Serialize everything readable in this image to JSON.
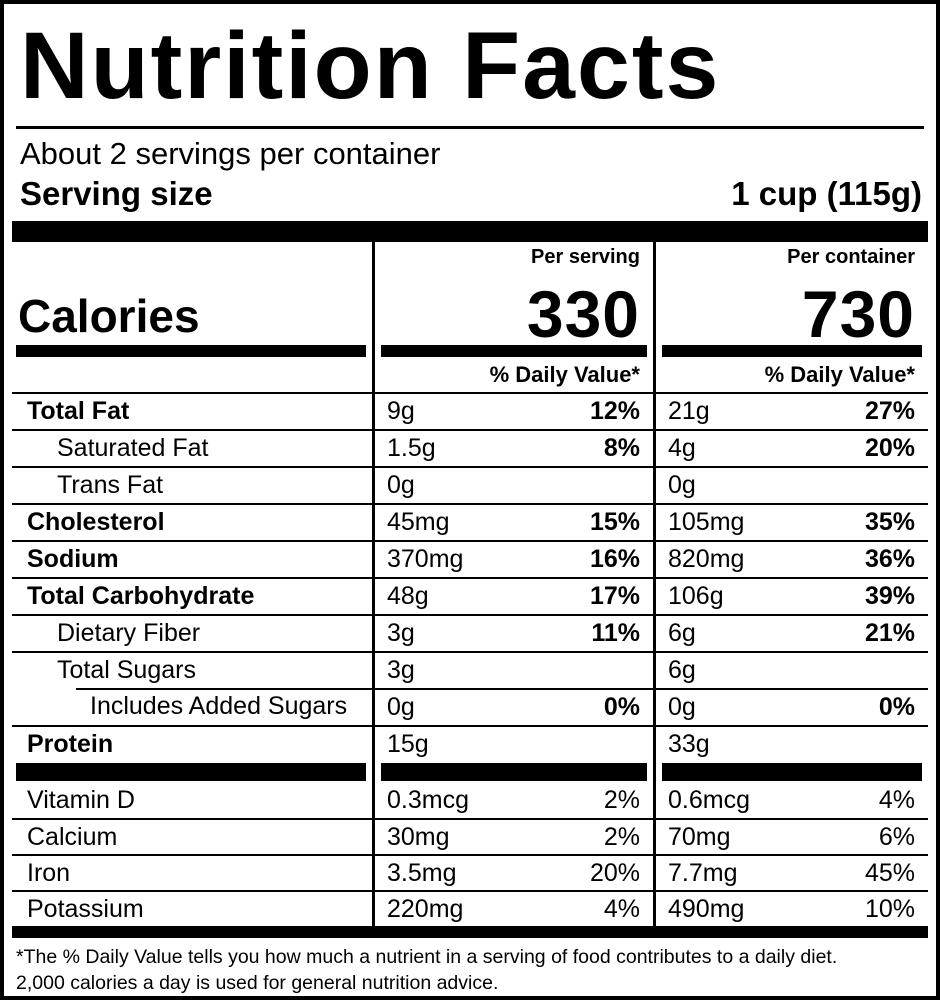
{
  "label": {
    "title": "Nutrition Facts",
    "servings_per_container": "About 2 servings per container",
    "serving_size_label": "Serving size",
    "serving_size_value": "1 cup (115g)",
    "calories": {
      "label": "Calories",
      "per_serving_header": "Per serving",
      "per_serving_value": "330",
      "per_container_header": "Per container",
      "per_container_value": "730"
    },
    "daily_value_header_serving": "% Daily Value*",
    "daily_value_header_container": "% Daily Value*",
    "rows": [
      {
        "label": "Total Fat",
        "serving_amount": "9g",
        "serving_dv": "12%",
        "container_amount": "21g",
        "container_dv": "27%"
      },
      {
        "label": "Saturated Fat",
        "serving_amount": "1.5g",
        "serving_dv": "8%",
        "container_amount": "4g",
        "container_dv": "20%"
      },
      {
        "label": "Trans Fat",
        "serving_amount": "0g",
        "serving_dv": "",
        "container_amount": "0g",
        "container_dv": ""
      },
      {
        "label": "Cholesterol",
        "serving_amount": "45mg",
        "serving_dv": "15%",
        "container_amount": "105mg",
        "container_dv": "35%"
      },
      {
        "label": "Sodium",
        "serving_amount": "370mg",
        "serving_dv": "16%",
        "container_amount": "820mg",
        "container_dv": "36%"
      },
      {
        "label": "Total Carbohydrate",
        "serving_amount": "48g",
        "serving_dv": "17%",
        "container_amount": "106g",
        "container_dv": "39%"
      },
      {
        "label": "Dietary Fiber",
        "serving_amount": "3g",
        "serving_dv": "11%",
        "container_amount": "6g",
        "container_dv": "21%"
      },
      {
        "label": "Total Sugars",
        "serving_amount": "3g",
        "serving_dv": "",
        "container_amount": "6g",
        "container_dv": ""
      },
      {
        "label": "Includes Added Sugars",
        "serving_amount": "0g",
        "serving_dv": "0%",
        "container_amount": "0g",
        "container_dv": "0%"
      },
      {
        "label": "Protein",
        "serving_amount": "15g",
        "serving_dv": "",
        "container_amount": "33g",
        "container_dv": ""
      }
    ],
    "vitamins": [
      {
        "label": "Vitamin D",
        "serving_amount": "0.3mcg",
        "serving_dv": "2%",
        "container_amount": "0.6mcg",
        "container_dv": "4%"
      },
      {
        "label": "Calcium",
        "serving_amount": "30mg",
        "serving_dv": "2%",
        "container_amount": "70mg",
        "container_dv": "6%"
      },
      {
        "label": "Iron",
        "serving_amount": "3.5mg",
        "serving_dv": "20%",
        "container_amount": "7.7mg",
        "container_dv": "45%"
      },
      {
        "label": "Potassium",
        "serving_amount": "220mg",
        "serving_dv": "4%",
        "container_amount": "490mg",
        "container_dv": "10%"
      }
    ],
    "footnote_line1": "*The % Daily Value tells you how much a nutrient in a serving of food contributes to a daily diet.",
    "footnote_line2": "2,000 calories a day is used for general nutrition advice.",
    "colors": {
      "text": "#000000",
      "background": "#ffffff"
    }
  }
}
